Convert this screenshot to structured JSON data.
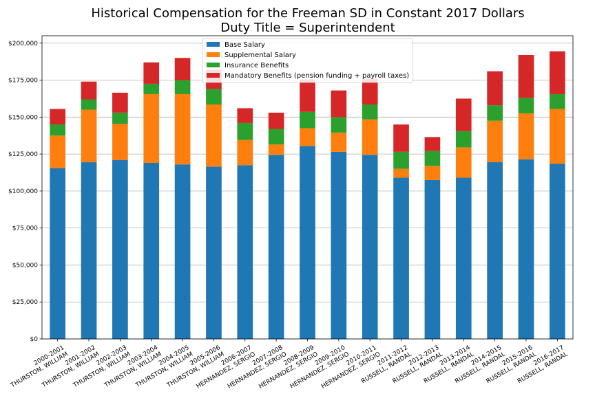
{
  "chart_data": {
    "type": "bar",
    "stacked": true,
    "title": "Historical Compensation for the Freeman SD in Constant 2017 Dollars",
    "subtitle": "Duty Title = Superintendent",
    "xlabel": "",
    "ylabel": "",
    "ylim": [
      0,
      205000
    ],
    "yticks": [
      0,
      25000,
      50000,
      75000,
      100000,
      125000,
      150000,
      175000,
      200000
    ],
    "ytick_labels": [
      "$0",
      "$25,000",
      "$50,000",
      "$75,000",
      "$100,000",
      "$125,000",
      "$150,000",
      "$175,000",
      "$200,000"
    ],
    "grid": "horizontal",
    "legend_position": "top-center",
    "categories": [
      {
        "year": "2000-2001",
        "name": "THURSTON, WILLIAM"
      },
      {
        "year": "2001-2002",
        "name": "THURSTON, WILLIAM"
      },
      {
        "year": "2002-2003",
        "name": "THURSTON, WILLIAM"
      },
      {
        "year": "2003-2004",
        "name": "THURSTON, WILLIAM"
      },
      {
        "year": "2004-2005",
        "name": "THURSTON, WILLIAM"
      },
      {
        "year": "2005-2006",
        "name": "THURSTON, WILLIAM"
      },
      {
        "year": "2006-2007",
        "name": "HERNANDEZ, SERGIO"
      },
      {
        "year": "2007-2008",
        "name": "HERNANDEZ, SERGIO"
      },
      {
        "year": "2008-2009",
        "name": "HERNANDEZ, SERGIO"
      },
      {
        "year": "2009-2010",
        "name": "HERNANDEZ, SERGIO"
      },
      {
        "year": "2010-2011",
        "name": "HERNANDEZ, SERGIO"
      },
      {
        "year": "2011-2012",
        "name": "RUSSELL, RANDAL"
      },
      {
        "year": "2012-2013",
        "name": "RUSSELL, RANDAL"
      },
      {
        "year": "2013-2014",
        "name": "RUSSELL, RANDAL"
      },
      {
        "year": "2014-2015",
        "name": "RUSSELL, RANDAL"
      },
      {
        "year": "2015-2016",
        "name": "RUSSELL, RANDAL"
      },
      {
        "year": "2016-2017",
        "name": "RUSSELL, RANDAL"
      }
    ],
    "series": [
      {
        "name": "Base Salary",
        "color": "#1f77b4",
        "values": [
          115500,
          119500,
          121000,
          119000,
          118000,
          116500,
          117500,
          124500,
          130500,
          126500,
          124500,
          109000,
          107500,
          109000,
          119500,
          121500,
          118500
        ]
      },
      {
        "name": "Supplemental Salary",
        "color": "#ff7f0e",
        "values": [
          22000,
          35500,
          24500,
          46500,
          47500,
          42000,
          17000,
          7000,
          12000,
          13000,
          24000,
          6000,
          9500,
          20500,
          28000,
          31000,
          37000
        ]
      },
      {
        "name": "Insurance Benefits",
        "color": "#2ca02c",
        "values": [
          7500,
          7000,
          7500,
          7000,
          9500,
          10500,
          11500,
          10500,
          11000,
          10500,
          10000,
          11500,
          10000,
          11000,
          10500,
          10500,
          10000
        ]
      },
      {
        "name": "Mandatory Benefits (pension funding + payroll taxes)",
        "color": "#d62728",
        "values": [
          10500,
          12000,
          13500,
          14500,
          15000,
          13000,
          10000,
          11000,
          22000,
          18000,
          17500,
          18500,
          9500,
          22000,
          23000,
          29000,
          29000
        ]
      }
    ]
  }
}
